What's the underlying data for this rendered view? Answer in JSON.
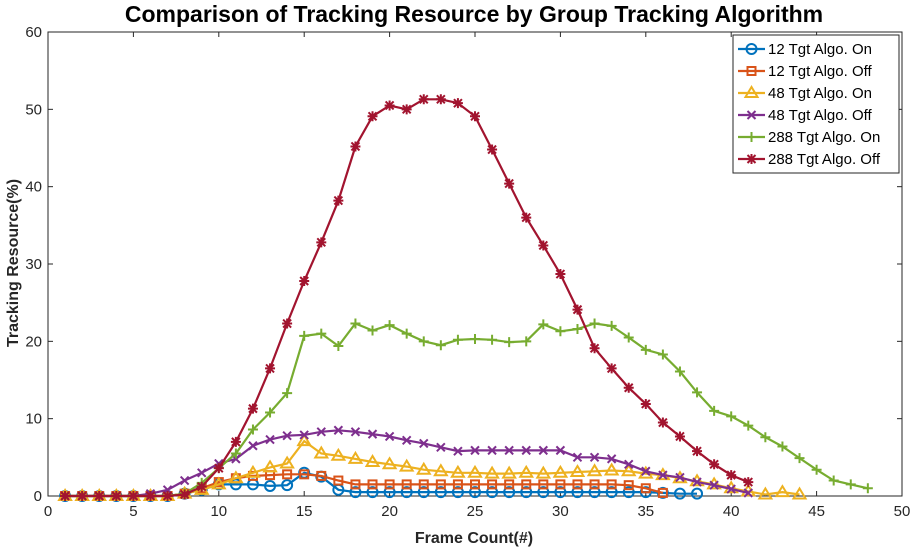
{
  "chart_data": {
    "type": "line",
    "title": "Comparison of Tracking Resource by Group Tracking Algorithm",
    "xlabel": "Frame Count(#)",
    "ylabel": "Tracking Resource(%)",
    "xlim": [
      0,
      50
    ],
    "ylim": [
      0,
      60
    ],
    "xticks": [
      0,
      5,
      10,
      15,
      20,
      25,
      30,
      35,
      40,
      45,
      50
    ],
    "yticks": [
      0,
      10,
      20,
      30,
      40,
      50,
      60
    ],
    "grid": false,
    "legend_position": "top-right",
    "series": [
      {
        "name": "12 Tgt Algo. On",
        "color": "#0072BD",
        "marker": "circle",
        "x": [
          1,
          2,
          3,
          4,
          5,
          6,
          7,
          8,
          9,
          10,
          11,
          12,
          13,
          14,
          15,
          16,
          17,
          18,
          19,
          20,
          21,
          22,
          23,
          24,
          25,
          26,
          27,
          28,
          29,
          30,
          31,
          32,
          33,
          34,
          35,
          36,
          37,
          38
        ],
        "y": [
          0,
          0,
          0,
          0,
          0,
          0,
          0,
          0.3,
          0.8,
          1.5,
          1.5,
          1.5,
          1.3,
          1.4,
          3,
          2.5,
          0.8,
          0.5,
          0.5,
          0.5,
          0.5,
          0.5,
          0.5,
          0.5,
          0.5,
          0.5,
          0.5,
          0.5,
          0.5,
          0.5,
          0.5,
          0.5,
          0.5,
          0.5,
          0.5,
          0.4,
          0.3,
          0.3
        ]
      },
      {
        "name": "12 Tgt Algo. Off",
        "color": "#D95319",
        "marker": "square",
        "x": [
          1,
          2,
          3,
          4,
          5,
          6,
          7,
          8,
          9,
          10,
          11,
          12,
          13,
          14,
          15,
          16,
          17,
          18,
          19,
          20,
          21,
          22,
          23,
          24,
          25,
          26,
          27,
          28,
          29,
          30,
          31,
          32,
          33,
          34,
          35,
          36
        ],
        "y": [
          0,
          0,
          0,
          0,
          0,
          0,
          0,
          0.3,
          1,
          1.8,
          2.3,
          2.6,
          2.7,
          2.8,
          2.8,
          2.6,
          2,
          1.5,
          1.5,
          1.5,
          1.5,
          1.5,
          1.5,
          1.5,
          1.5,
          1.5,
          1.5,
          1.5,
          1.5,
          1.5,
          1.5,
          1.5,
          1.5,
          1.4,
          1,
          0.4
        ]
      },
      {
        "name": "48 Tgt Algo. On",
        "color": "#EDB120",
        "marker": "triangle",
        "x": [
          1,
          2,
          3,
          4,
          5,
          6,
          7,
          8,
          9,
          10,
          11,
          12,
          13,
          14,
          15,
          16,
          17,
          18,
          19,
          20,
          21,
          22,
          23,
          24,
          25,
          26,
          27,
          28,
          29,
          30,
          31,
          32,
          33,
          34,
          35,
          36,
          37,
          38,
          39,
          40,
          41,
          42,
          43,
          44
        ],
        "y": [
          0,
          0,
          0,
          0,
          0,
          0,
          0,
          0.3,
          0.8,
          1.5,
          2.3,
          3,
          3.7,
          4.2,
          7.1,
          5.5,
          5.2,
          4.8,
          4.4,
          4.1,
          3.8,
          3.4,
          3.2,
          3,
          3,
          2.9,
          2.9,
          3,
          2.9,
          3,
          3.1,
          3.2,
          3.3,
          3.2,
          2.9,
          2.7,
          2.3,
          1.9,
          1.5,
          1,
          0.6,
          0.2,
          0.5,
          0.2
        ]
      },
      {
        "name": "48 Tgt Algo. Off",
        "color": "#7E2F8E",
        "marker": "x",
        "x": [
          1,
          2,
          3,
          4,
          5,
          6,
          7,
          8,
          9,
          10,
          11,
          12,
          13,
          14,
          15,
          16,
          17,
          18,
          19,
          20,
          21,
          22,
          23,
          24,
          25,
          26,
          27,
          28,
          29,
          30,
          31,
          32,
          33,
          34,
          35,
          36,
          37,
          38,
          39,
          40,
          41
        ],
        "y": [
          0,
          0,
          0,
          0,
          0,
          0.3,
          0.8,
          2,
          3,
          4.2,
          4.8,
          6.5,
          7.3,
          7.8,
          7.9,
          8.3,
          8.5,
          8.3,
          8,
          7.7,
          7.2,
          6.8,
          6.3,
          5.8,
          5.9,
          5.9,
          5.9,
          5.9,
          5.9,
          5.9,
          5,
          5,
          4.8,
          4.1,
          3.2,
          2.7,
          2.4,
          1.8,
          1.4,
          0.9,
          0.4
        ]
      },
      {
        "name": "288 Tgt Algo. On",
        "color": "#77AC30",
        "marker": "plus",
        "x": [
          1,
          2,
          3,
          4,
          5,
          6,
          7,
          8,
          9,
          10,
          11,
          12,
          13,
          14,
          15,
          16,
          17,
          18,
          19,
          20,
          21,
          22,
          23,
          24,
          25,
          26,
          27,
          28,
          29,
          30,
          31,
          32,
          33,
          34,
          35,
          36,
          37,
          38,
          39,
          40,
          41,
          42,
          43,
          44,
          45,
          46,
          47,
          48
        ],
        "y": [
          0,
          0,
          0,
          0,
          0,
          0,
          0,
          0.3,
          1.7,
          3.6,
          5.5,
          8.6,
          10.8,
          13.3,
          20.7,
          21,
          19.4,
          22.3,
          21.4,
          22.1,
          21,
          20,
          19.5,
          20.2,
          20.3,
          20.2,
          19.9,
          20,
          22.2,
          21.3,
          21.6,
          22.3,
          22,
          20.5,
          18.9,
          18.3,
          16.1,
          13.4,
          11,
          10.3,
          9.1,
          7.6,
          6.4,
          4.9,
          3.4,
          2,
          1.5,
          1
        ]
      },
      {
        "name": "288 Tgt Algo. Off",
        "color": "#A2142F",
        "marker": "star",
        "x": [
          1,
          2,
          3,
          4,
          5,
          6,
          7,
          8,
          9,
          10,
          11,
          12,
          13,
          14,
          15,
          16,
          17,
          18,
          19,
          20,
          21,
          22,
          23,
          24,
          25,
          26,
          27,
          28,
          29,
          30,
          31,
          32,
          33,
          34,
          35,
          36,
          37,
          38,
          39,
          40,
          41
        ],
        "y": [
          0,
          0,
          0,
          0,
          0,
          0,
          0,
          0.2,
          1.2,
          3.6,
          7,
          11.3,
          16.5,
          22.3,
          27.8,
          32.8,
          38.2,
          45.2,
          49.1,
          50.5,
          50,
          51.3,
          51.3,
          50.8,
          49.1,
          44.8,
          40.4,
          36,
          32.4,
          28.7,
          24.1,
          19.1,
          16.5,
          14,
          11.9,
          9.5,
          7.7,
          5.8,
          4.1,
          2.7,
          1.8
        ]
      }
    ]
  }
}
